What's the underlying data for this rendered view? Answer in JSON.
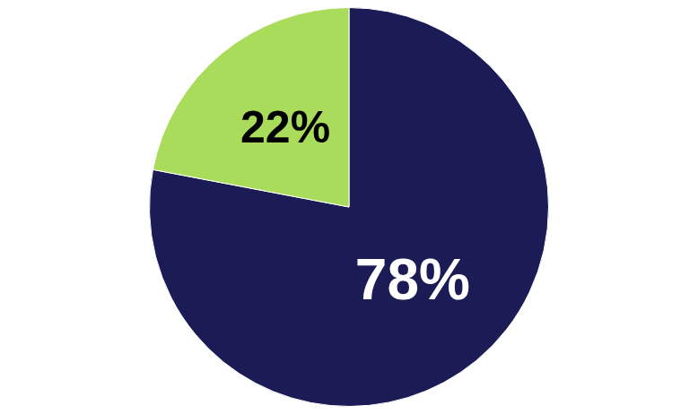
{
  "chart_data": {
    "type": "pie",
    "values": [
      78,
      22
    ],
    "value_labels": [
      "78%",
      "22%"
    ],
    "colors": [
      "#1b1b55",
      "#a8dc5a"
    ],
    "data_labels": true
  }
}
